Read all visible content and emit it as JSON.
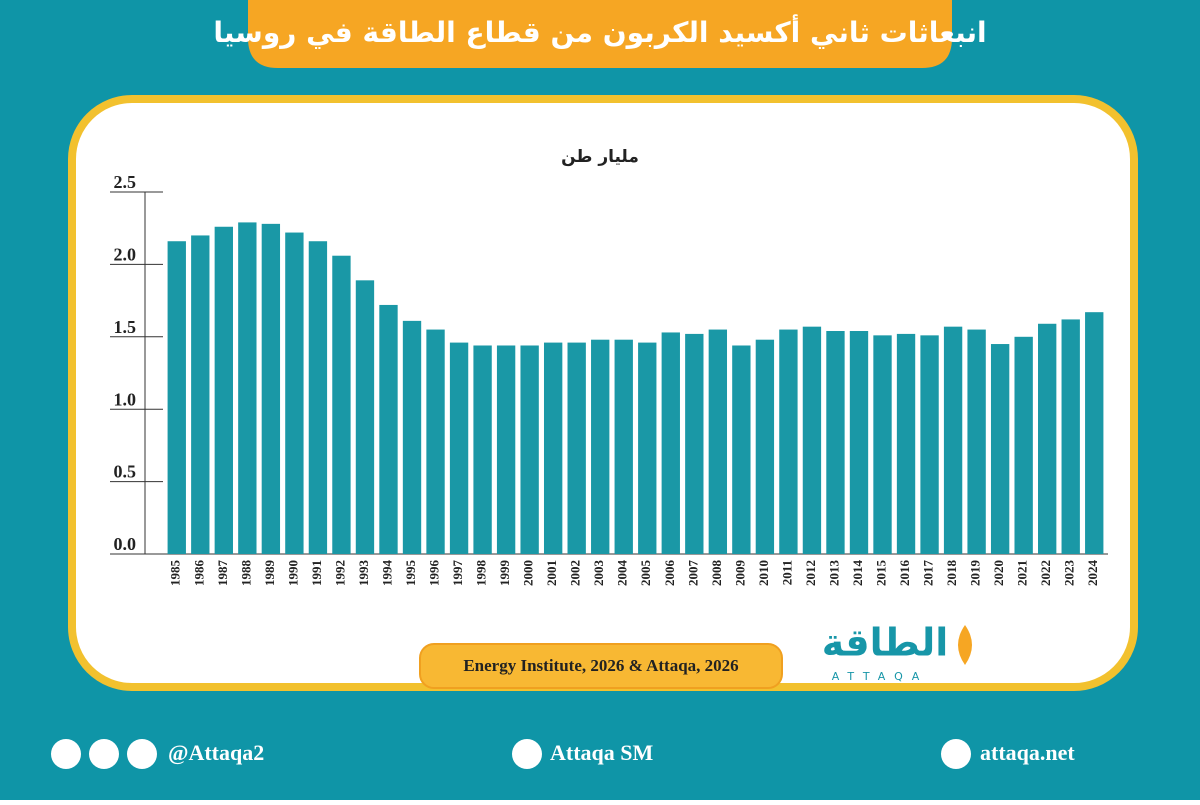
{
  "chart_data": {
    "type": "bar",
    "title": "انبعاثات ثاني أكسيد الكربون من قطاع الطاقة في روسيا",
    "ylabel": "مليار طن",
    "source": "Energy Institute, 2026 & Attaqa, 2026",
    "categories": [
      "1985",
      "1986",
      "1987",
      "1988",
      "1989",
      "1990",
      "1991",
      "1992",
      "1993",
      "1994",
      "1995",
      "1996",
      "1997",
      "1998",
      "1999",
      "2000",
      "2001",
      "2002",
      "2003",
      "2004",
      "2005",
      "2006",
      "2007",
      "2008",
      "2009",
      "2010",
      "2011",
      "2012",
      "2013",
      "2014",
      "2015",
      "2016",
      "2017",
      "2018",
      "2019",
      "2020",
      "2021",
      "2022",
      "2023",
      "2024"
    ],
    "values": [
      2.16,
      2.2,
      2.26,
      2.29,
      2.28,
      2.22,
      2.16,
      2.06,
      1.89,
      1.72,
      1.61,
      1.55,
      1.46,
      1.44,
      1.44,
      1.44,
      1.46,
      1.46,
      1.48,
      1.48,
      1.46,
      1.53,
      1.52,
      1.55,
      1.44,
      1.48,
      1.55,
      1.57,
      1.54,
      1.54,
      1.51,
      1.52,
      1.51,
      1.57,
      1.55,
      1.45,
      1.5,
      1.59,
      1.62,
      1.67
    ],
    "color": "#1a98a6",
    "ylim": [
      0,
      2.5
    ],
    "yticks": [
      {
        "value": 0,
        "label": "0.0"
      },
      0.5,
      {
        "value": 1,
        "label": "1.0"
      },
      1.5,
      {
        "value": 2,
        "label": "2.0"
      },
      2.5
    ],
    "grid": false
  },
  "logo": {
    "text": "الطاقة",
    "subtext": "ATTAQA"
  },
  "footer": {
    "social": "@Attaqa2",
    "youtube": "Attaqa SM",
    "website": "attaqa.net"
  }
}
